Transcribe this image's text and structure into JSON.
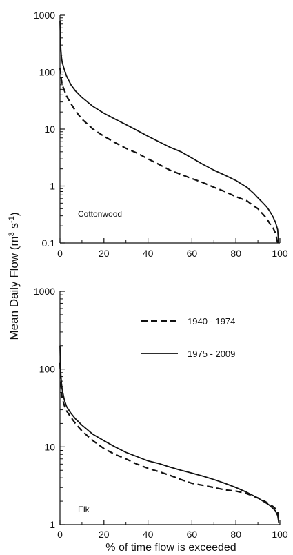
{
  "figure": {
    "ylabel_main": "Mean Daily Flow (m",
    "ylabel_sup1": "3",
    "ylabel_mid": " s",
    "ylabel_sup2": "-1",
    "ylabel_end": ")",
    "xlabel": "% of time flow is exceeded"
  },
  "chart_data": [
    {
      "type": "line",
      "panel": "top",
      "annotation": "Cottonwood",
      "xlim": [
        0,
        100
      ],
      "ylim": [
        0.1,
        1000
      ],
      "yscale": "log",
      "xticks": [
        "0",
        "20",
        "40",
        "60",
        "80",
        "100"
      ],
      "yticks": [
        "0.1",
        "1",
        "10",
        "100",
        "1000"
      ],
      "xtick_values": [
        0,
        20,
        40,
        60,
        80,
        100
      ],
      "ytick_values": [
        0.1,
        1,
        10,
        100,
        1000
      ],
      "grid": false,
      "series": [
        {
          "name": "1940 - 1974",
          "style": "dashed",
          "x": [
            0,
            0.3,
            0.6,
            1,
            2,
            3,
            5,
            7,
            10,
            15,
            20,
            25,
            30,
            35,
            40,
            45,
            50,
            55,
            60,
            65,
            70,
            75,
            80,
            85,
            88,
            90,
            92,
            94,
            96,
            97,
            98,
            98.5,
            99
          ],
          "y": [
            120,
            95,
            75,
            60,
            48,
            38,
            28,
            21,
            15,
            10,
            7.5,
            5.8,
            4.6,
            3.8,
            3.0,
            2.4,
            1.9,
            1.6,
            1.35,
            1.15,
            0.95,
            0.8,
            0.65,
            0.55,
            0.45,
            0.4,
            0.33,
            0.27,
            0.2,
            0.18,
            0.15,
            0.12,
            0.1
          ]
        },
        {
          "name": "1975 - 2009",
          "style": "solid",
          "x": [
            0,
            0.2,
            0.4,
            0.7,
            1,
            2,
            3,
            5,
            7,
            10,
            15,
            20,
            25,
            30,
            35,
            40,
            45,
            50,
            55,
            60,
            65,
            70,
            75,
            80,
            85,
            88,
            90,
            92,
            94,
            95,
            96,
            97,
            98,
            99,
            99.4
          ],
          "y": [
            800,
            400,
            250,
            180,
            150,
            110,
            85,
            60,
            47,
            36,
            25,
            19,
            15,
            12,
            9.5,
            7.5,
            6.0,
            4.8,
            4.0,
            3.1,
            2.4,
            1.9,
            1.55,
            1.25,
            0.95,
            0.75,
            0.62,
            0.52,
            0.43,
            0.38,
            0.33,
            0.28,
            0.23,
            0.17,
            0.1
          ]
        }
      ]
    },
    {
      "type": "line",
      "panel": "bottom",
      "annotation": "Elk",
      "xlim": [
        0,
        100
      ],
      "ylim": [
        1,
        1000
      ],
      "yscale": "log",
      "xticks": [
        "0",
        "20",
        "40",
        "60",
        "80",
        "100"
      ],
      "yticks": [
        "1",
        "10",
        "100",
        "1000"
      ],
      "xtick_values": [
        0,
        20,
        40,
        60,
        80,
        100
      ],
      "ytick_values": [
        1,
        10,
        100,
        1000
      ],
      "grid": false,
      "legend": {
        "placement": "top-right",
        "entries": [
          {
            "label": "1940 - 1974",
            "style": "dashed"
          },
          {
            "label": "1975 - 2009",
            "style": "solid"
          }
        ]
      },
      "series": [
        {
          "name": "1940 - 1974",
          "style": "dashed",
          "x": [
            0,
            0.3,
            0.6,
            1,
            2,
            3,
            5,
            7,
            10,
            15,
            20,
            25,
            30,
            35,
            40,
            45,
            50,
            55,
            60,
            65,
            70,
            75,
            80,
            85,
            90,
            93,
            95,
            97,
            98,
            99,
            99.5
          ],
          "y": [
            120,
            75,
            55,
            42,
            34,
            29,
            24,
            20,
            16,
            12,
            9.5,
            8.0,
            7.0,
            6.0,
            5.3,
            4.8,
            4.3,
            3.8,
            3.4,
            3.2,
            3.0,
            2.8,
            2.7,
            2.5,
            2.2,
            2.0,
            1.85,
            1.7,
            1.6,
            1.45,
            1.1
          ]
        },
        {
          "name": "1975 - 2009",
          "style": "solid",
          "x": [
            0,
            0.2,
            0.4,
            0.7,
            1,
            2,
            3,
            5,
            7,
            10,
            15,
            20,
            25,
            30,
            35,
            40,
            45,
            50,
            55,
            60,
            65,
            70,
            75,
            80,
            85,
            90,
            93,
            95,
            97,
            98,
            99,
            99.5
          ],
          "y": [
            200,
            120,
            85,
            65,
            55,
            40,
            33,
            27,
            23,
            19,
            14.5,
            12,
            10,
            8.5,
            7.5,
            6.6,
            6.1,
            5.5,
            5.0,
            4.6,
            4.2,
            3.8,
            3.4,
            3.0,
            2.6,
            2.2,
            1.95,
            1.8,
            1.6,
            1.5,
            1.3,
            1.05
          ]
        }
      ]
    }
  ]
}
